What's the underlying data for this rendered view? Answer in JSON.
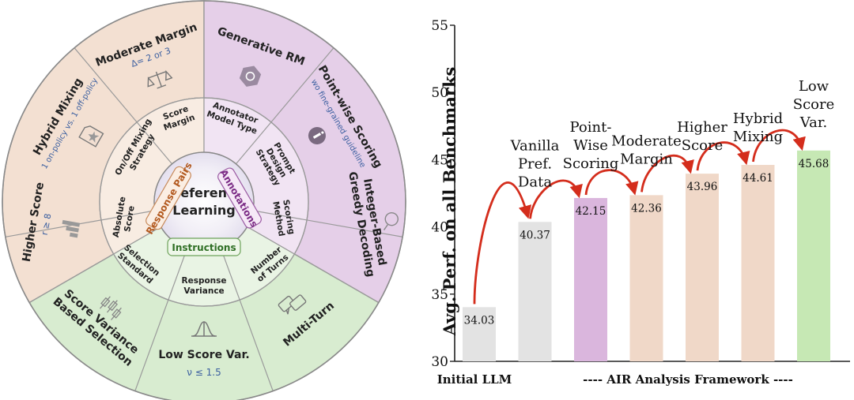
{
  "wheel": {
    "center": [
      "Preference",
      "Learning"
    ],
    "categories": {
      "response_pairs": "Response Pairs",
      "annotations": "Annotations",
      "instructions": "Instructions"
    },
    "inner": {
      "score_margin": [
        "Score",
        "Margin"
      ],
      "mixing_strategy": [
        "On/Off Mixing",
        "Strategy"
      ],
      "absolute_score": [
        "Absolute",
        "Score"
      ],
      "annotator_model": [
        "Annotator",
        "Model Type"
      ],
      "prompt_design": [
        "Prompt",
        "Design",
        "Strategy"
      ],
      "scoring_method": [
        "Scoring",
        "Method"
      ],
      "selection_standard": [
        "Selection",
        "Standard"
      ],
      "response_variance": [
        "Response",
        "Variance"
      ],
      "number_of_turns": [
        "Number",
        "of Turns"
      ]
    },
    "outer": {
      "moderate_margin": {
        "title": "Moderate Margin",
        "sub": "Δ= 2 or 3"
      },
      "hybrid_mixing": {
        "title": "Hybrid Mixing",
        "sub": "1 on-policy vs. 1 off-policy"
      },
      "higher_score": {
        "title": "Higher Score",
        "sub": "r ≥ 8"
      },
      "generative_rm": {
        "title": "Generative RM",
        "sub": ""
      },
      "pointwise_scoring": {
        "title": "Point-wise Scoring",
        "sub": "wo fine-grained guideline"
      },
      "greedy_decoding": {
        "title": [
          "Integer-Based",
          "Greedy Decoding"
        ],
        "sub": ""
      },
      "variance_selection": {
        "title": [
          "Score Variance",
          "Based Selection"
        ],
        "sub": ""
      },
      "low_score_var": {
        "title": "Low Score Var.",
        "sub": "ν ≤ 1.5"
      },
      "multi_turn": {
        "title": "Multi-Turn",
        "sub": ""
      }
    },
    "colors": {
      "orange": "#f3e0d2",
      "orange_inner": "#f8ece2",
      "purple": "#e5cfe8",
      "purple_inner": "#f1e4f3",
      "green": "#d8ecd0",
      "green_inner": "#e9f4e4"
    }
  },
  "chart_data": {
    "type": "bar",
    "title": "",
    "ylabel": "Avg. Perf. on all Benchmarks",
    "xlabel_left": "Initial LLM",
    "xlabel_right": "---- AIR Analysis Framework ----",
    "ylim": [
      30,
      55
    ],
    "yticks": [
      30,
      35,
      40,
      45,
      50,
      55
    ],
    "grid": false,
    "categories": [
      [
        "Initial LLM"
      ],
      [
        "Vanilla",
        "Pref.",
        "Data"
      ],
      [
        "Point-",
        "Wise",
        "Scoring"
      ],
      [
        "Moderate",
        "Margin"
      ],
      [
        "Higher",
        "Score"
      ],
      [
        "Hybrid",
        "Mixing"
      ],
      [
        "Low",
        "Score",
        "Var."
      ]
    ],
    "values": [
      34.03,
      40.37,
      42.15,
      42.36,
      43.96,
      44.61,
      45.68
    ],
    "value_labels": [
      "34.03",
      "40.37",
      "42.15",
      "42.36",
      "43.96",
      "44.61",
      "45.68"
    ],
    "bar_colors": [
      "#e3e3e3",
      "#e3e3e3",
      "#dab6dd",
      "#f0d8c8",
      "#f0d8c8",
      "#f0d8c8",
      "#c6e8b4"
    ],
    "arrow_color": "#d42d1c"
  }
}
